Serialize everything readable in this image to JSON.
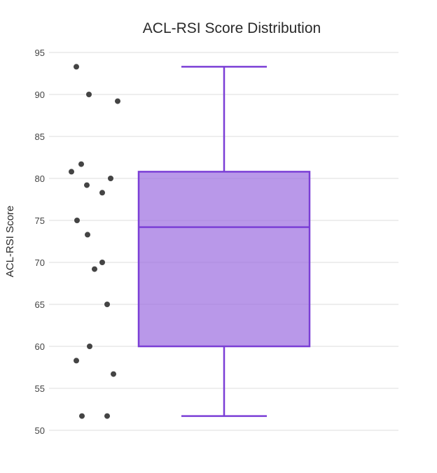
{
  "chart_data": {
    "type": "box",
    "title": "ACL-RSI Score Distribution",
    "xlabel": "",
    "ylabel": "ACL-RSI Score",
    "ylim": [
      50,
      95
    ],
    "yticks": [
      50,
      55,
      60,
      65,
      70,
      75,
      80,
      85,
      90,
      95
    ],
    "grid": true,
    "legend": "none",
    "box": {
      "min": 51.7,
      "q1": 60,
      "median": 74.2,
      "q3": 80.8,
      "max": 93.3,
      "fill_color": "#9b6ce0",
      "line_color": "#7b3fd6"
    },
    "points": [
      93.3,
      90,
      89.2,
      81.7,
      80.8,
      80,
      79.2,
      78.3,
      75,
      73.3,
      70,
      69.2,
      65,
      60,
      58.3,
      56.7,
      51.7,
      51.7
    ],
    "point_color": "#444444"
  }
}
